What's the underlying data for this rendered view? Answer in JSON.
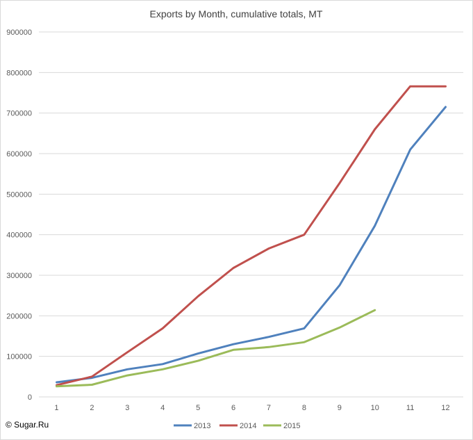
{
  "copyright": "© Sugar.Ru",
  "chart_data": {
    "type": "line",
    "title": "Exports by Month, cumulative totals, MT",
    "xlabel": "",
    "ylabel": "",
    "x": [
      1,
      2,
      3,
      4,
      5,
      6,
      7,
      8,
      9,
      10,
      11,
      12
    ],
    "ylim": [
      0,
      900000
    ],
    "yticks": [
      0,
      100000,
      200000,
      300000,
      400000,
      500000,
      600000,
      700000,
      800000,
      900000
    ],
    "grid": true,
    "legend_position": "bottom",
    "series": [
      {
        "name": "2013",
        "color": "#4f81bd",
        "values": [
          36000,
          47000,
          68000,
          81000,
          107000,
          130000,
          148000,
          169000,
          275000,
          422000,
          610000,
          715000
        ]
      },
      {
        "name": "2014",
        "color": "#c0504d",
        "values": [
          29000,
          50000,
          110000,
          169000,
          248000,
          318000,
          366000,
          400000,
          527000,
          660000,
          766000,
          766000
        ]
      },
      {
        "name": "2015",
        "color": "#9bbb59",
        "values": [
          26000,
          30000,
          53000,
          68000,
          89000,
          116000,
          123000,
          135000,
          171000,
          214000,
          null,
          null
        ]
      }
    ]
  }
}
